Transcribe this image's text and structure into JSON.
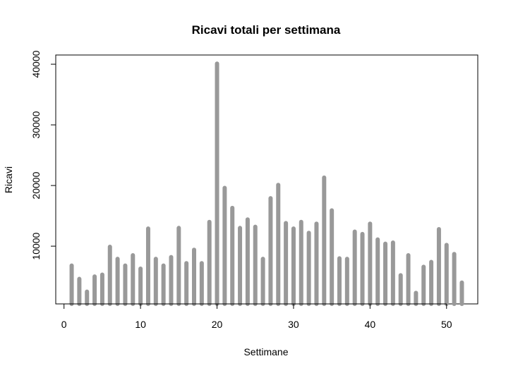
{
  "chart_data": {
    "type": "bar",
    "title": "Ricavi totali per settimana",
    "xlabel": "Settimane",
    "ylabel": "Ricavi",
    "xlim": [
      -1.08,
      54.08
    ],
    "ylim": [
      480,
      41520
    ],
    "x_ticks": [
      0,
      10,
      20,
      30,
      40,
      50
    ],
    "y_ticks": [
      10000,
      20000,
      30000,
      40000
    ],
    "bar_color": "#999999",
    "grid": false,
    "legend": "none",
    "x": [
      1,
      2,
      3,
      4,
      5,
      6,
      7,
      8,
      9,
      10,
      11,
      12,
      13,
      14,
      15,
      16,
      17,
      18,
      19,
      20,
      21,
      22,
      23,
      24,
      25,
      26,
      27,
      28,
      29,
      30,
      31,
      32,
      33,
      34,
      35,
      36,
      37,
      38,
      39,
      40,
      41,
      42,
      43,
      44,
      45,
      46,
      47,
      48,
      49,
      50,
      51,
      52
    ],
    "values": [
      6800,
      4600,
      2500,
      5000,
      5300,
      9900,
      7900,
      6800,
      8500,
      6300,
      12900,
      7900,
      6800,
      8200,
      13000,
      7200,
      9400,
      7200,
      14000,
      40100,
      19600,
      16300,
      13000,
      14400,
      13200,
      7900,
      17900,
      20100,
      13800,
      12900,
      14000,
      12200,
      13700,
      21300,
      15900,
      8000,
      7900,
      12400,
      12000,
      13700,
      11100,
      10400,
      10600,
      5200,
      8500,
      2300,
      6600,
      7400,
      12800,
      10200,
      8700,
      4000
    ]
  }
}
